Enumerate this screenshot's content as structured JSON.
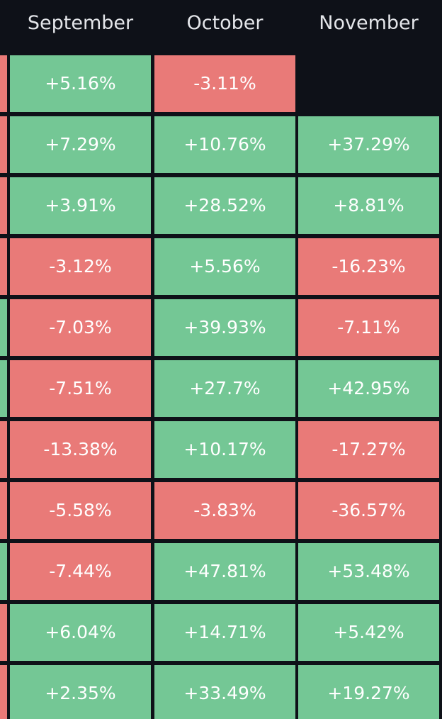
{
  "table": {
    "header": [
      "September",
      "October",
      "November"
    ],
    "rows": [
      [
        "+5.16%",
        "-3.11%",
        null
      ],
      [
        "+7.29%",
        "+10.76%",
        "+37.29%"
      ],
      [
        "+3.91%",
        "+28.52%",
        "+8.81%"
      ],
      [
        "-3.12%",
        "+5.56%",
        "-16.23%"
      ],
      [
        "-7.03%",
        "+39.93%",
        "-7.11%"
      ],
      [
        "-7.51%",
        "+27.7%",
        "+42.95%"
      ],
      [
        "-13.38%",
        "+10.17%",
        "-17.27%"
      ],
      [
        "-5.58%",
        "-3.83%",
        "-36.57%"
      ],
      [
        "-7.44%",
        "+47.81%",
        "+53.48%"
      ],
      [
        "+6.04%",
        "+14.71%",
        "+5.42%"
      ],
      [
        "+2.35%",
        "+33.49%",
        "+19.27%"
      ]
    ],
    "colors": {
      "positive": "#74c795",
      "negative": "#e97a78"
    }
  }
}
